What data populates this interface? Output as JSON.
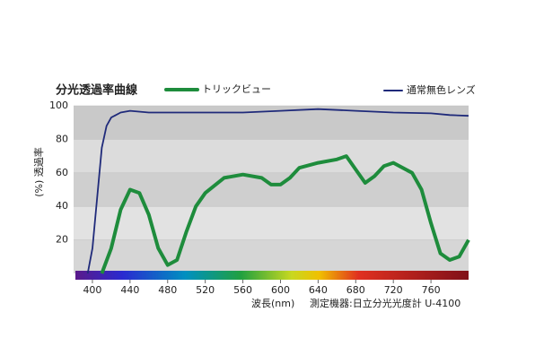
{
  "chart_data": {
    "type": "line",
    "title": "分光透過率曲線",
    "y_label": "(%) 透過率",
    "x_label": "波長(nm)",
    "note": "測定機器:日立分光光度計 U-4100",
    "xlim": [
      380,
      800
    ],
    "ylim": [
      0,
      100
    ],
    "xticks": [
      400,
      440,
      480,
      520,
      560,
      600,
      640,
      680,
      720,
      760
    ],
    "yticks": [
      20,
      40,
      60,
      80,
      100
    ],
    "series": [
      {
        "name": "トリックビュー",
        "color": "#1e8c3c",
        "x": [
          410,
          420,
          430,
          440,
          450,
          460,
          470,
          480,
          490,
          500,
          510,
          520,
          540,
          560,
          580,
          590,
          600,
          610,
          620,
          640,
          660,
          670,
          680,
          690,
          700,
          710,
          720,
          740,
          750,
          760,
          770,
          780,
          790,
          800
        ],
        "values": [
          0,
          15,
          38,
          50,
          48,
          35,
          15,
          5,
          8,
          25,
          40,
          48,
          57,
          59,
          57,
          53,
          53,
          57,
          63,
          66,
          68,
          70,
          62,
          54,
          58,
          64,
          66,
          60,
          50,
          30,
          12,
          8,
          10,
          20
        ]
      },
      {
        "name": "通常無色レンズ",
        "color": "#1f2a7a",
        "x": [
          395,
          400,
          405,
          410,
          415,
          420,
          430,
          440,
          460,
          500,
          560,
          600,
          640,
          680,
          720,
          760,
          780,
          800
        ],
        "values": [
          0,
          15,
          45,
          75,
          88,
          93,
          96,
          97,
          96,
          96,
          96,
          97,
          98,
          97,
          96,
          95.5,
          94.5,
          94
        ]
      }
    ]
  }
}
